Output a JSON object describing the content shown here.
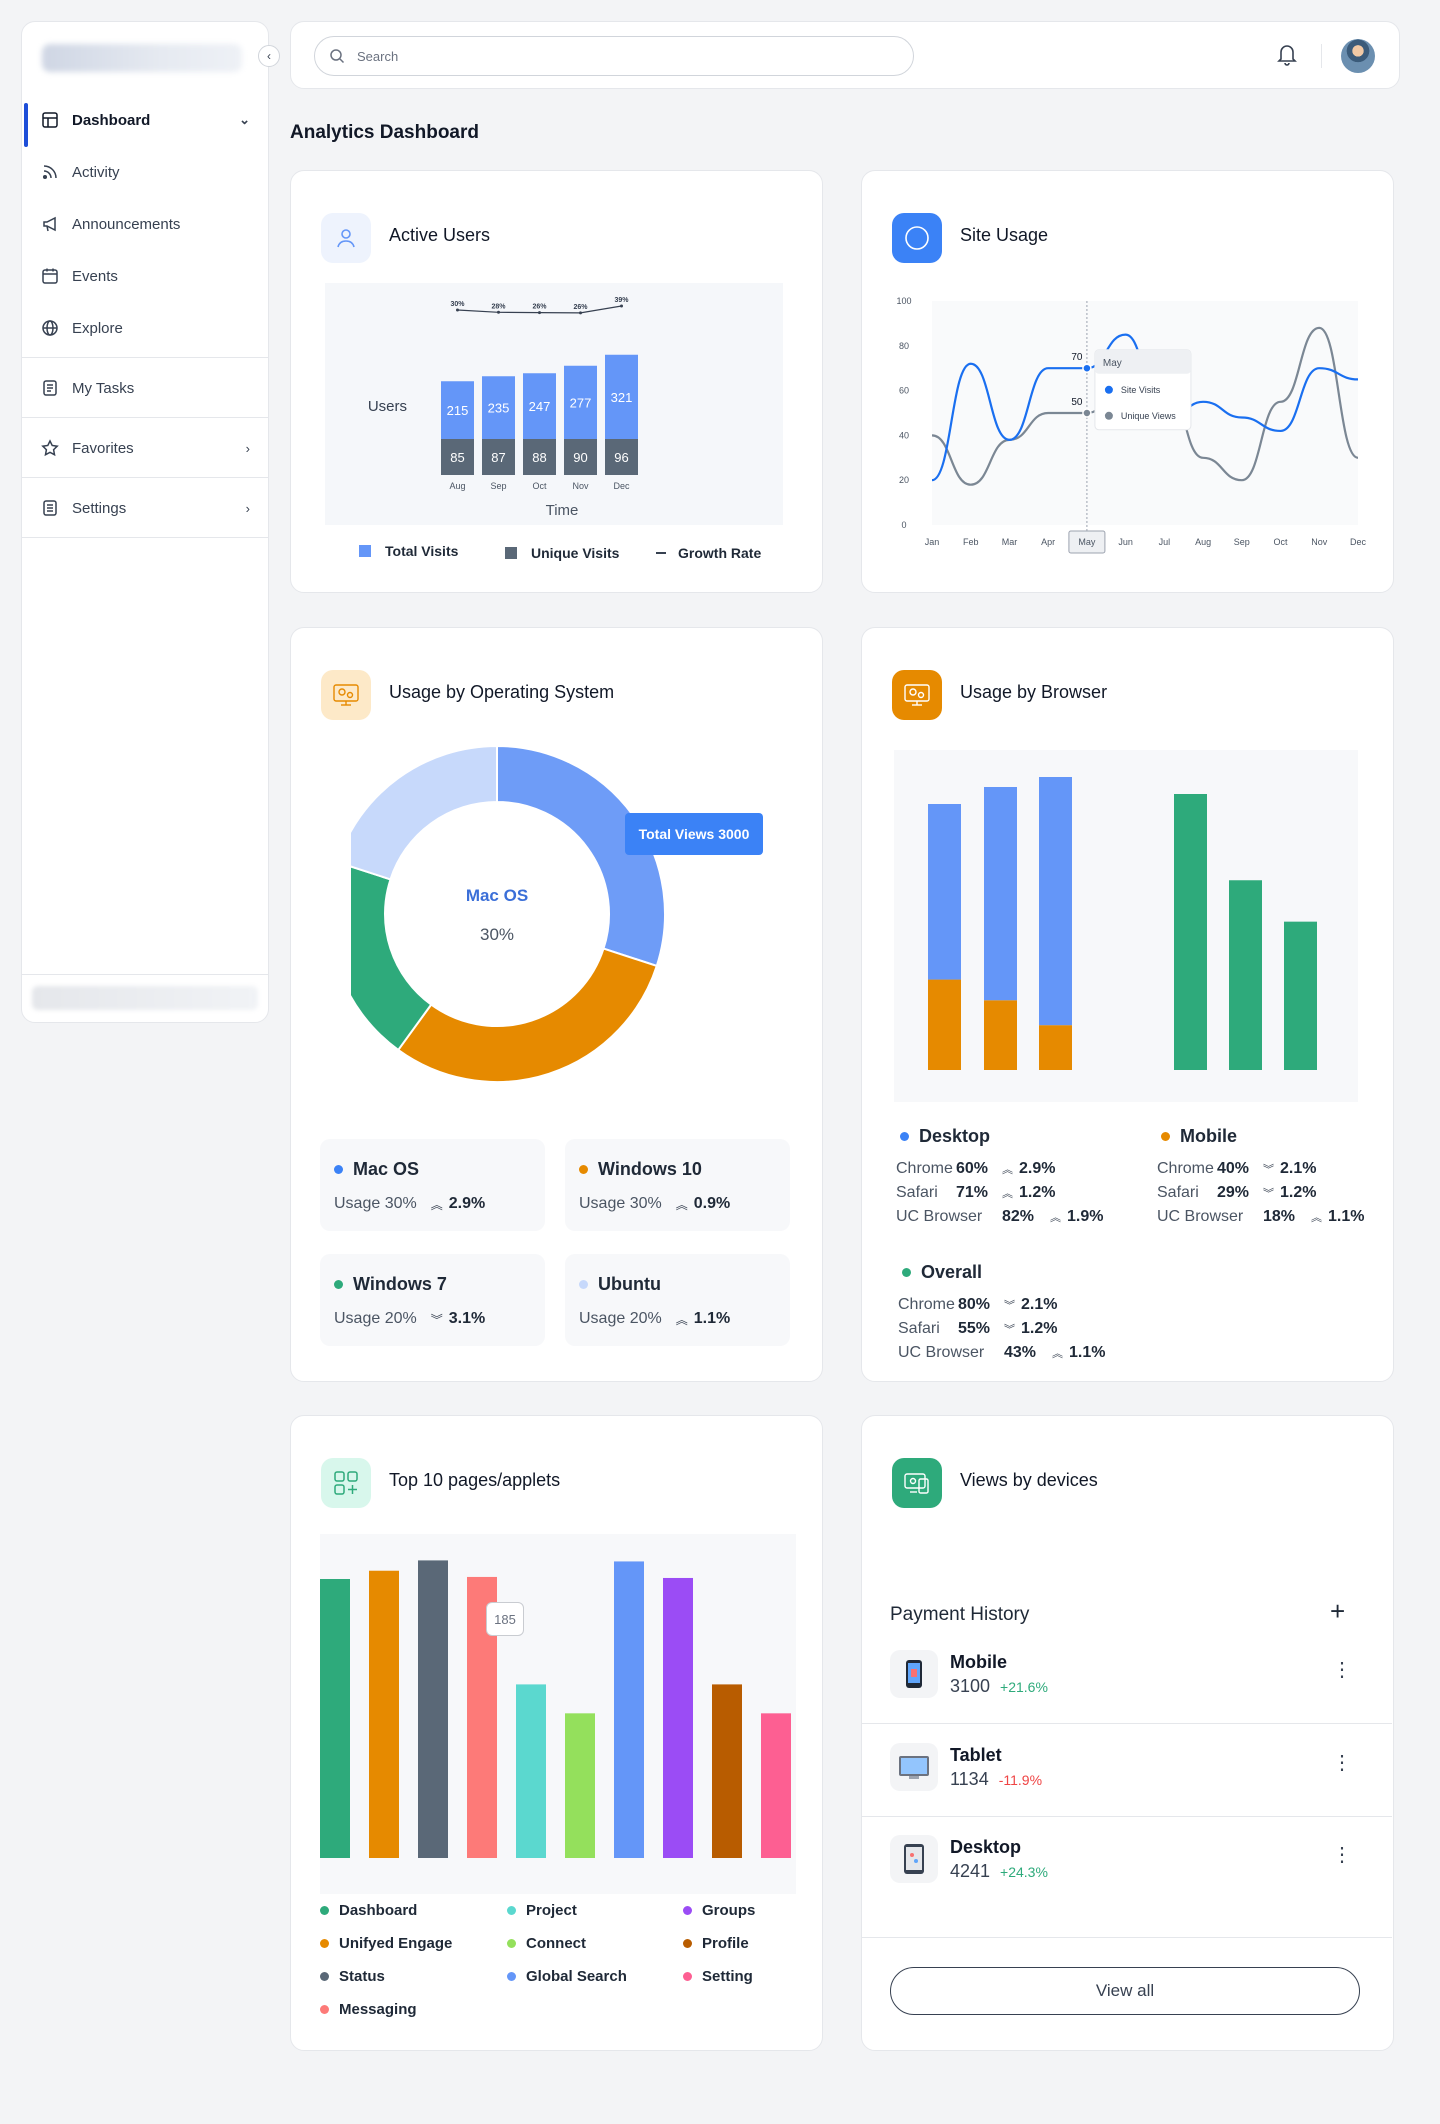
{
  "sidebar": {
    "items": [
      {
        "label": "Dashboard",
        "icon": "dashboard-icon",
        "active": true,
        "chevron": "down"
      },
      {
        "label": "Activity",
        "icon": "rss-icon"
      },
      {
        "label": "Announcements",
        "icon": "megaphone-icon"
      },
      {
        "label": "Events",
        "icon": "calendar-icon"
      },
      {
        "label": "Explore",
        "icon": "globe-icon"
      },
      {
        "label": "My Tasks",
        "icon": "task-list-icon"
      },
      {
        "label": "Favorites",
        "icon": "star-icon",
        "chevron": "right"
      },
      {
        "label": "Settings",
        "icon": "settings-icon",
        "chevron": "right"
      }
    ]
  },
  "topbar": {
    "search_placeholder": "Search"
  },
  "page": {
    "title": "Analytics Dashboard"
  },
  "active_users": {
    "title": "Active Users",
    "chart_data": {
      "type": "bar",
      "stacked": true,
      "categories": [
        "Aug",
        "Sep",
        "Oct",
        "Nov",
        "Dec"
      ],
      "series": [
        {
          "name": "Total Visits",
          "values": [
            215,
            235,
            247,
            277,
            321
          ],
          "color": "#6496f8"
        },
        {
          "name": "Unique Visits",
          "values": [
            85,
            87,
            88,
            90,
            96
          ],
          "color": "#5a6877"
        },
        {
          "name": "Growth Rate",
          "values": [
            "30%",
            "28%",
            "26%",
            "26%",
            "39%"
          ],
          "type": "line"
        }
      ],
      "xlabel": "Time",
      "ylabel": "Users"
    }
  },
  "site_usage": {
    "title": "Site Usage",
    "chart_data": {
      "type": "line",
      "x": [
        "Jan",
        "Feb",
        "Mar",
        "Apr",
        "May",
        "Jun",
        "Jul",
        "Aug",
        "Sep",
        "Oct",
        "Nov",
        "Dec"
      ],
      "ylim": [
        0,
        100
      ],
      "yticks": [
        0,
        20,
        40,
        60,
        80,
        100
      ],
      "series": [
        {
          "name": "Site Visits",
          "values": [
            20,
            72,
            38,
            70,
            70,
            85,
            45,
            55,
            48,
            42,
            70,
            65
          ],
          "color": "#1a6ff0"
        },
        {
          "name": "Unique Views",
          "values": [
            40,
            18,
            38,
            50,
            50,
            62,
            65,
            30,
            20,
            55,
            88,
            30
          ],
          "color": "#7b8794"
        }
      ],
      "highlight": "May",
      "tooltip": {
        "title": "May",
        "labels": {
          "Site Visits": 70,
          "Unique Views": 50
        }
      }
    }
  },
  "os_usage": {
    "title": "Usage by Operating System",
    "tooltip": "Total Views 3000",
    "center_label": "Mac OS",
    "center_value": "30%",
    "chart_data": {
      "type": "pie",
      "donut": true,
      "slices": [
        {
          "name": "Mac OS",
          "value": 30,
          "color": "#6e9cf7"
        },
        {
          "name": "Windows 10",
          "value": 30,
          "color": "#e68a00"
        },
        {
          "name": "Windows 7",
          "value": 20,
          "color": "#2eaa7b"
        },
        {
          "name": "Ubuntu",
          "value": 20,
          "color": "#c7d9fb"
        }
      ]
    },
    "cards": [
      {
        "name": "Mac OS",
        "usage": "Usage 30%",
        "delta": "2.9%",
        "dir": "up",
        "color": "#3b82f6"
      },
      {
        "name": "Windows 10",
        "usage": "Usage 30%",
        "delta": "0.9%",
        "dir": "up",
        "color": "#e68a00"
      },
      {
        "name": "Windows 7",
        "usage": "Usage 20%",
        "delta": "3.1%",
        "dir": "down",
        "color": "#2eaa7b"
      },
      {
        "name": "Ubuntu",
        "usage": "Usage 20%",
        "delta": "1.1%",
        "dir": "up",
        "color": "#c7d9fb"
      }
    ]
  },
  "browser_usage": {
    "title": "Usage by Browser",
    "chart_data": {
      "type": "bar",
      "groups": [
        {
          "name": "Desktop",
          "values": [
            60,
            71,
            82
          ]
        },
        {
          "name": "Mobile",
          "values": [
            40,
            29,
            18
          ]
        },
        {
          "name": "Overall",
          "values": [
            80,
            55,
            43
          ]
        }
      ],
      "categories": [
        "Chrome",
        "Safari",
        "UC Browser"
      ]
    },
    "groups": [
      {
        "name": "Desktop",
        "color": "#3b82f6",
        "rows": [
          {
            "browser": "Chrome",
            "value": "60%",
            "delta": "2.9%",
            "dir": "up"
          },
          {
            "browser": "Safari",
            "value": "71%",
            "delta": "1.2%",
            "dir": "up"
          },
          {
            "browser": "UC Browser",
            "value": "82%",
            "delta": "1.9%",
            "dir": "up"
          }
        ]
      },
      {
        "name": "Mobile",
        "color": "#e68a00",
        "rows": [
          {
            "browser": "Chrome",
            "value": "40%",
            "delta": "2.1%",
            "dir": "down"
          },
          {
            "browser": "Safari",
            "value": "29%",
            "delta": "1.2%",
            "dir": "down"
          },
          {
            "browser": "UC Browser",
            "value": "18%",
            "delta": "1.1%",
            "dir": "up"
          }
        ]
      },
      {
        "name": "Overall",
        "color": "#2eaa7b",
        "rows": [
          {
            "browser": "Chrome",
            "value": "80%",
            "delta": "2.1%",
            "dir": "down"
          },
          {
            "browser": "Safari",
            "value": "55%",
            "delta": "1.2%",
            "dir": "down"
          },
          {
            "browser": "UC Browser",
            "value": "43%",
            "delta": "1.1%",
            "dir": "up"
          }
        ]
      }
    ]
  },
  "top_pages": {
    "title": "Top 10 pages/applets",
    "tooltip": "185",
    "chart_data": {
      "type": "bar",
      "categories": [
        "Dashboard",
        "Unifyed Engage",
        "Status",
        "Messaging",
        "Project",
        "Connect",
        "Global Search",
        "Groups",
        "Profile",
        "Setting"
      ],
      "values": [
        270,
        278,
        288,
        272,
        168,
        140,
        287,
        271,
        168,
        140
      ],
      "colors": [
        "#2eaa7b",
        "#e68a00",
        "#5a6877",
        "#fd7a78",
        "#5bd8cf",
        "#94e05c",
        "#6496f8",
        "#9b4cf5",
        "#b85c00",
        "#fd5f92"
      ]
    },
    "legend": [
      {
        "label": "Dashboard",
        "color": "#2eaa7b"
      },
      {
        "label": "Project",
        "color": "#5bd8cf"
      },
      {
        "label": "Groups",
        "color": "#9b4cf5"
      },
      {
        "label": "Unifyed Engage",
        "color": "#e68a00"
      },
      {
        "label": "Connect",
        "color": "#94e05c"
      },
      {
        "label": "Profile",
        "color": "#b85c00"
      },
      {
        "label": "Status",
        "color": "#5a6877"
      },
      {
        "label": "Global Search",
        "color": "#6496f8"
      },
      {
        "label": "Setting",
        "color": "#fd5f92"
      },
      {
        "label": "Messaging",
        "color": "#fd7a78"
      }
    ]
  },
  "devices": {
    "title": "Views by devices",
    "payment_title": "Payment History",
    "rows": [
      {
        "name": "Mobile",
        "value": "3100",
        "delta": "+21.6%",
        "color": "#2eaa7b",
        "icon": "mobile-phone-icon"
      },
      {
        "name": "Tablet",
        "value": "1134",
        "delta": "-11.9%",
        "color": "#ef4444",
        "icon": "tablet-icon"
      },
      {
        "name": "Desktop",
        "value": "4241",
        "delta": "+24.3%",
        "color": "#2eaa7b",
        "icon": "desktop-icon"
      }
    ],
    "view_all": "View all"
  }
}
